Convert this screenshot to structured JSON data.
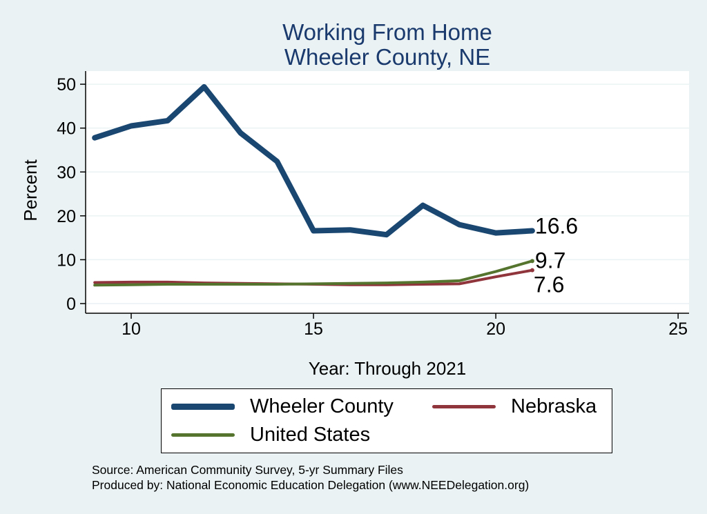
{
  "chart_data": {
    "type": "line",
    "title": [
      "Working From Home",
      "Wheeler County, NE"
    ],
    "xlabel": "Year: Through 2021",
    "ylabel": "Percent",
    "xlim": [
      8.75,
      25.3
    ],
    "ylim": [
      -2.2,
      53
    ],
    "xticks": [
      10,
      15,
      20,
      25
    ],
    "yticks": [
      0,
      10,
      20,
      30,
      40,
      50
    ],
    "grid": true,
    "legend_position": "bottom",
    "series": [
      {
        "name": "Wheeler County",
        "color": "#1a4771",
        "x": [
          9,
          10,
          11,
          12,
          13,
          14,
          15,
          16,
          17,
          18,
          19,
          20,
          21
        ],
        "y": [
          37.8,
          40.5,
          41.7,
          49.4,
          38.9,
          32.4,
          16.6,
          16.8,
          15.7,
          22.4,
          18.0,
          16.1,
          16.6
        ],
        "end_label": "16.6"
      },
      {
        "name": "Nebraska",
        "color": "#90353b",
        "x": [
          9,
          10,
          11,
          12,
          13,
          14,
          15,
          16,
          17,
          18,
          19,
          20,
          21
        ],
        "y": [
          4.8,
          4.9,
          4.9,
          4.7,
          4.6,
          4.5,
          4.4,
          4.3,
          4.3,
          4.4,
          4.5,
          6.1,
          7.6
        ],
        "end_label": "7.6"
      },
      {
        "name": "United States",
        "color": "#55752f",
        "x": [
          9,
          10,
          11,
          12,
          13,
          14,
          15,
          16,
          17,
          18,
          19,
          20,
          21
        ],
        "y": [
          4.2,
          4.3,
          4.4,
          4.4,
          4.4,
          4.4,
          4.5,
          4.6,
          4.7,
          4.9,
          5.2,
          7.3,
          9.7
        ],
        "end_label": "9.7"
      }
    ]
  },
  "legend": {
    "wheeler": "Wheeler County",
    "nebraska": "Nebraska",
    "us": "United States"
  },
  "footer": {
    "source": "Source: American Community Survey, 5-yr Summary Files",
    "produced": "Produced by: National Economic Education Delegation (www.NEEDelegation.org)"
  }
}
